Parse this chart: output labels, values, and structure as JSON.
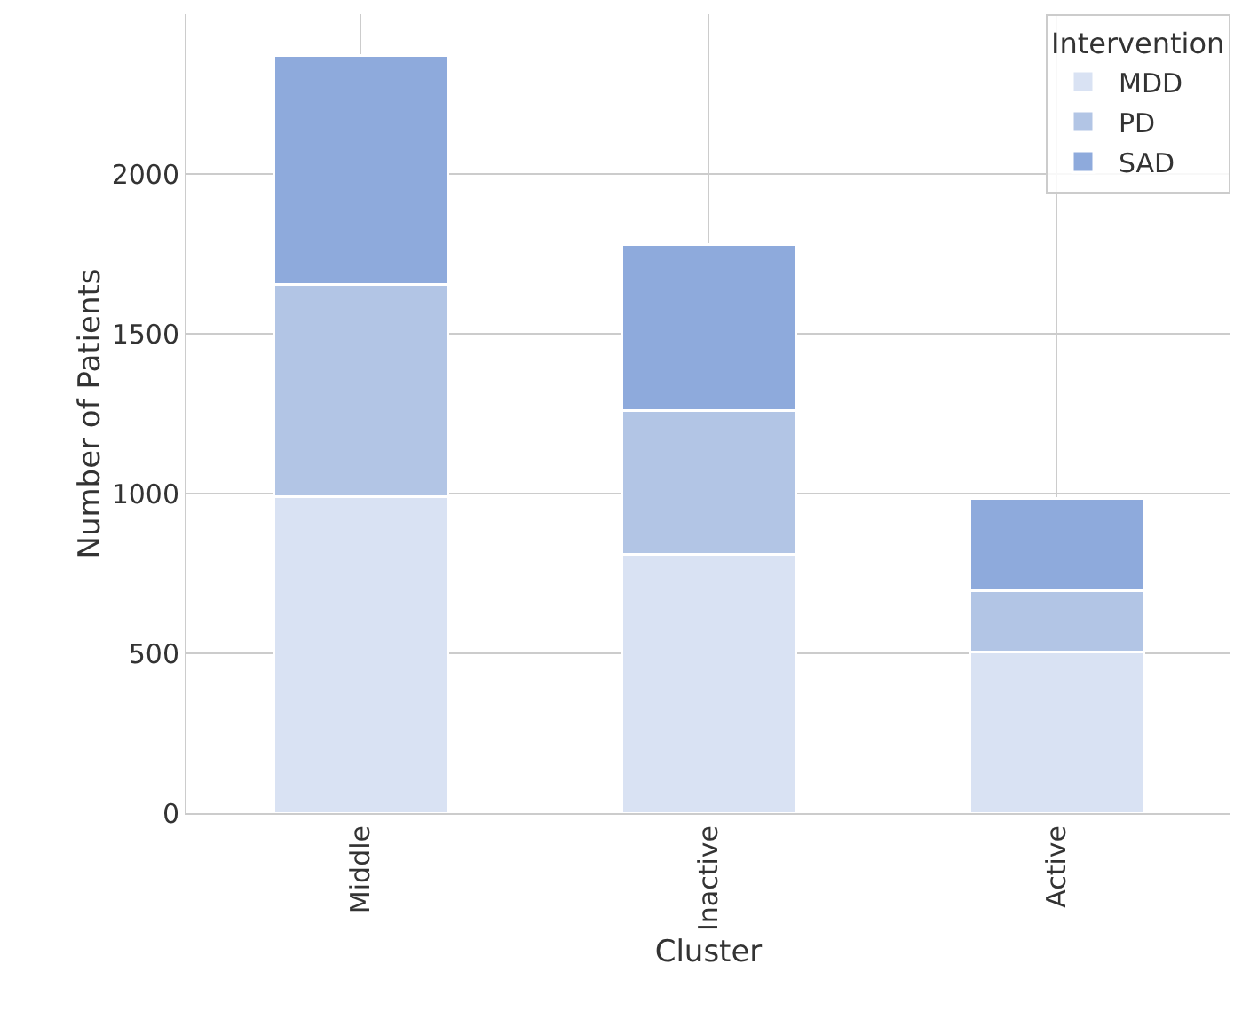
{
  "chart_data": {
    "type": "bar",
    "stacked": true,
    "xlabel": "Cluster",
    "ylabel": "Number of Patients",
    "legend_title": "Intervention",
    "categories": [
      "Middle",
      "Inactive",
      "Active"
    ],
    "series": [
      {
        "name": "MDD",
        "color": "#d9e2f3",
        "values": [
          990,
          810,
          505
        ]
      },
      {
        "name": "PD",
        "color": "#b2c5e5",
        "values": [
          665,
          450,
          190
        ]
      },
      {
        "name": "SAD",
        "color": "#8eaadc",
        "values": [
          715,
          520,
          290
        ]
      }
    ],
    "ylim": [
      0,
      2500
    ],
    "yticks": [
      0,
      500,
      1000,
      1500,
      2000
    ],
    "grid": true,
    "legend": "top right"
  }
}
